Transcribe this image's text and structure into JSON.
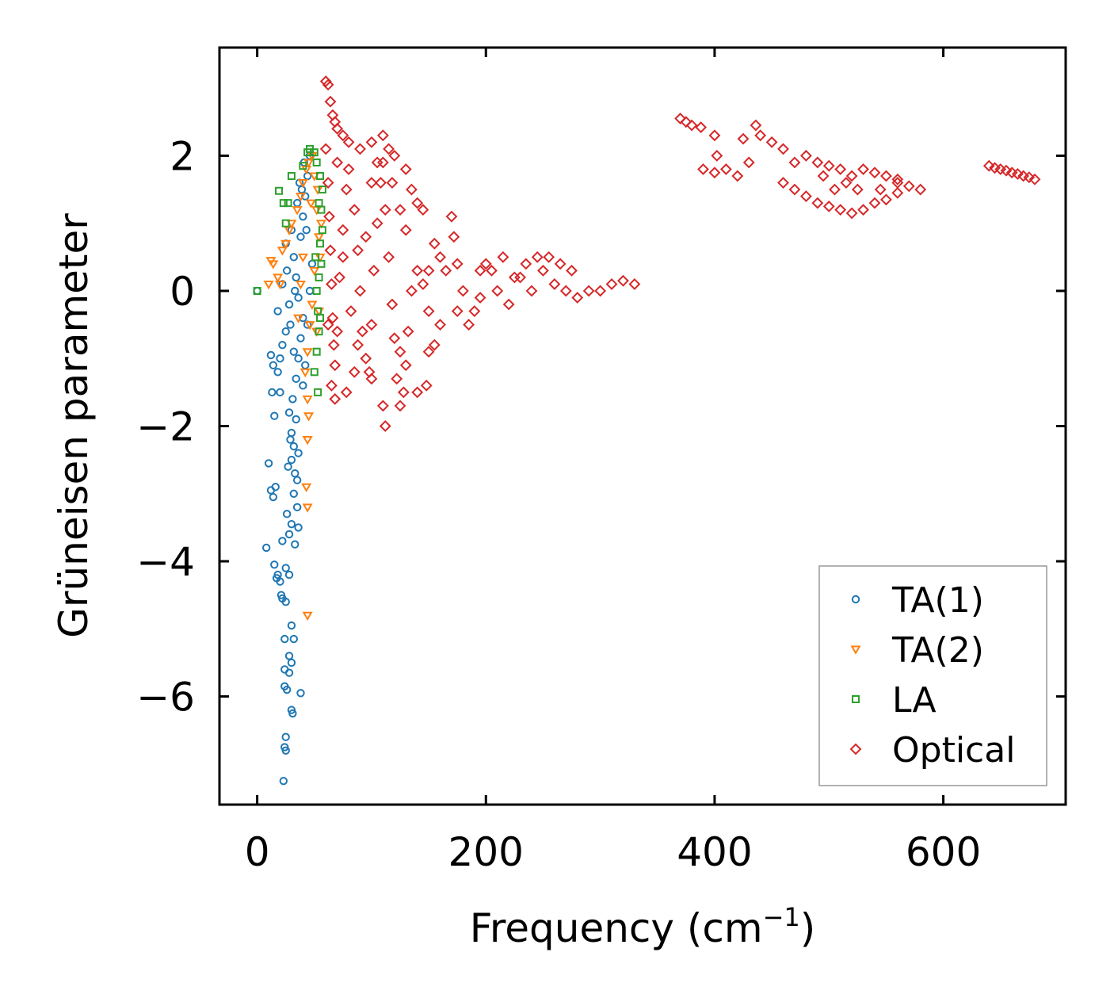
{
  "chart_data": {
    "type": "scatter",
    "title": "",
    "xlabel": "Frequency (cm",
    "xlabel_sup": "−1",
    "xlabel_suffix": ")",
    "ylabel": "Grüneisen parameter",
    "xlim": [
      -33,
      707
    ],
    "ylim": [
      -7.6,
      3.6
    ],
    "x_ticks": [
      0,
      200,
      400,
      600
    ],
    "x_tick_labels": [
      "0",
      "200",
      "400",
      "600"
    ],
    "y_ticks": [
      -6,
      -4,
      -2,
      0,
      2
    ],
    "y_tick_labels": [
      "−6",
      "−4",
      "−2",
      "0",
      "2"
    ],
    "grid": false,
    "legend_position": "lower-right",
    "series": [
      {
        "name": "TA(1)",
        "marker": "circle",
        "color": "#1f77b4",
        "points": [
          [
            0,
            0
          ],
          [
            10,
            -2.55
          ],
          [
            12,
            -2.95
          ],
          [
            14,
            -3.05
          ],
          [
            16,
            -2.9
          ],
          [
            8,
            -3.8
          ],
          [
            15,
            -4.05
          ],
          [
            18,
            -4.2
          ],
          [
            17,
            -4.25
          ],
          [
            20,
            -4.3
          ],
          [
            22,
            -3.7
          ],
          [
            25,
            -4.1
          ],
          [
            28,
            -4.2
          ],
          [
            21,
            -4.5
          ],
          [
            22,
            -4.55
          ],
          [
            25,
            -4.6
          ],
          [
            24,
            -5.15
          ],
          [
            30,
            -4.95
          ],
          [
            32,
            -5.15
          ],
          [
            28,
            -5.4
          ],
          [
            30,
            -5.5
          ],
          [
            24,
            -5.6
          ],
          [
            28,
            -5.65
          ],
          [
            24,
            -5.85
          ],
          [
            26,
            -5.9
          ],
          [
            38,
            -5.95
          ],
          [
            30,
            -6.2
          ],
          [
            31,
            -6.25
          ],
          [
            25,
            -6.6
          ],
          [
            24,
            -6.75
          ],
          [
            25,
            -6.8
          ],
          [
            23,
            -7.25
          ],
          [
            13,
            -1.5
          ],
          [
            15,
            -1.85
          ],
          [
            18,
            -1.2
          ],
          [
            20,
            -1.0
          ],
          [
            12,
            -0.95
          ],
          [
            14,
            -1.1
          ],
          [
            22,
            -0.8
          ],
          [
            25,
            -0.6
          ],
          [
            18,
            -0.3
          ],
          [
            20,
            -1.5
          ],
          [
            28,
            -1.8
          ],
          [
            30,
            -2.1
          ],
          [
            32,
            -2.3
          ],
          [
            30,
            -2.5
          ],
          [
            33,
            -2.7
          ],
          [
            35,
            -2.8
          ],
          [
            32,
            -3.0
          ],
          [
            35,
            -3.2
          ],
          [
            30,
            -3.45
          ],
          [
            28,
            -3.6
          ],
          [
            33,
            -3.75
          ],
          [
            36,
            -3.5
          ],
          [
            26,
            -3.3
          ],
          [
            27,
            -2.6
          ],
          [
            29,
            -2.2
          ],
          [
            31,
            -1.6
          ],
          [
            34,
            -1.3
          ],
          [
            36,
            -1.0
          ],
          [
            38,
            -0.7
          ],
          [
            40,
            -0.4
          ],
          [
            36,
            -0.1
          ],
          [
            34,
            0.2
          ],
          [
            32,
            0.5
          ],
          [
            38,
            0.8
          ],
          [
            40,
            1.1
          ],
          [
            42,
            1.4
          ],
          [
            44,
            1.7
          ],
          [
            46,
            2.0
          ],
          [
            30,
            0.9
          ],
          [
            35,
            1.3
          ],
          [
            37,
            1.6
          ],
          [
            25,
            0.7
          ],
          [
            26,
            0.3
          ],
          [
            22,
            0.1
          ],
          [
            28,
            -0.2
          ],
          [
            32,
            -0.9
          ],
          [
            34,
            -1.9
          ],
          [
            36,
            -2.4
          ],
          [
            40,
            -1.4
          ],
          [
            42,
            -1.1
          ],
          [
            44,
            -0.5
          ],
          [
            46,
            0.0
          ],
          [
            48,
            0.4
          ],
          [
            43,
            0.9
          ],
          [
            41,
            1.9
          ],
          [
            39,
            1.5
          ],
          [
            33,
            0.0
          ],
          [
            29,
            -0.5
          ]
        ]
      },
      {
        "name": "TA(2)",
        "marker": "triangle-down",
        "color": "#ff7f0e",
        "points": [
          [
            10,
            0.1
          ],
          [
            12,
            0.45
          ],
          [
            14,
            0.4
          ],
          [
            18,
            0.2
          ],
          [
            20,
            0.1
          ],
          [
            22,
            0.6
          ],
          [
            25,
            0.7
          ],
          [
            28,
            0.9
          ],
          [
            30,
            1.0
          ],
          [
            35,
            1.2
          ],
          [
            38,
            1.4
          ],
          [
            40,
            1.6
          ],
          [
            43,
            1.8
          ],
          [
            45,
            1.9
          ],
          [
            48,
            2.0
          ],
          [
            50,
            1.7
          ],
          [
            52,
            1.2
          ],
          [
            54,
            0.8
          ],
          [
            50,
            0.3
          ],
          [
            48,
            -0.2
          ],
          [
            46,
            -0.5
          ],
          [
            44,
            -0.9
          ],
          [
            42,
            -1.2
          ],
          [
            44,
            -1.6
          ],
          [
            45,
            -1.85
          ],
          [
            44,
            -2.2
          ],
          [
            43,
            -2.9
          ],
          [
            44,
            -3.2
          ],
          [
            44,
            -4.8
          ],
          [
            36,
            -0.4
          ],
          [
            38,
            0.1
          ],
          [
            40,
            0.5
          ],
          [
            52,
            -0.6
          ],
          [
            54,
            -0.3
          ],
          [
            55,
            0.5
          ],
          [
            56,
            1.0
          ],
          [
            53,
            1.5
          ],
          [
            47,
            1.3
          ]
        ]
      },
      {
        "name": "LA",
        "marker": "square",
        "color": "#2ca02c",
        "points": [
          [
            0,
            0
          ],
          [
            19,
            1.48
          ],
          [
            23,
            1.3
          ],
          [
            27,
            1.3
          ],
          [
            30,
            1.7
          ],
          [
            25,
            1.0
          ],
          [
            40,
            1.85
          ],
          [
            44,
            2.05
          ],
          [
            46,
            2.1
          ],
          [
            50,
            2.05
          ],
          [
            52,
            1.9
          ],
          [
            55,
            1.7
          ],
          [
            56,
            1.2
          ],
          [
            55,
            0.7
          ],
          [
            54,
            0.2
          ],
          [
            53,
            -0.3
          ],
          [
            54,
            -0.6
          ],
          [
            52,
            -0.9
          ],
          [
            50,
            -1.2
          ],
          [
            53,
            -1.5
          ],
          [
            56,
            0.4
          ],
          [
            57,
            0.9
          ],
          [
            57,
            1.5
          ],
          [
            54,
            1.3
          ],
          [
            51,
            0.5
          ],
          [
            52,
            0.0
          ],
          [
            55,
            -0.4
          ]
        ]
      },
      {
        "name": "Optical",
        "marker": "diamond",
        "color": "#d62728",
        "points": [
          [
            60,
            3.1
          ],
          [
            62,
            3.05
          ],
          [
            64,
            2.8
          ],
          [
            66,
            2.6
          ],
          [
            68,
            2.5
          ],
          [
            70,
            2.4
          ],
          [
            75,
            2.3
          ],
          [
            80,
            2.2
          ],
          [
            90,
            2.1
          ],
          [
            100,
            2.2
          ],
          [
            110,
            2.3
          ],
          [
            115,
            2.1
          ],
          [
            120,
            2.0
          ],
          [
            130,
            1.8
          ],
          [
            135,
            1.5
          ],
          [
            140,
            1.3
          ],
          [
            145,
            1.2
          ],
          [
            60,
            2.1
          ],
          [
            62,
            1.6
          ],
          [
            63,
            1.1
          ],
          [
            64,
            0.6
          ],
          [
            65,
            0.1
          ],
          [
            66,
            -0.4
          ],
          [
            67,
            -0.8
          ],
          [
            68,
            -1.1
          ],
          [
            70,
            -0.6
          ],
          [
            72,
            0.2
          ],
          [
            75,
            0.9
          ],
          [
            78,
            1.5
          ],
          [
            80,
            1.8
          ],
          [
            85,
            1.2
          ],
          [
            88,
            0.6
          ],
          [
            90,
            0.0
          ],
          [
            92,
            -0.6
          ],
          [
            95,
            -1.0
          ],
          [
            98,
            -1.2
          ],
          [
            100,
            -0.5
          ],
          [
            102,
            0.3
          ],
          [
            105,
            1.0
          ],
          [
            108,
            1.6
          ],
          [
            110,
            1.9
          ],
          [
            112,
            1.2
          ],
          [
            115,
            0.5
          ],
          [
            118,
            -0.2
          ],
          [
            120,
            -0.7
          ],
          [
            122,
            -1.3
          ],
          [
            125,
            -1.7
          ],
          [
            128,
            -1.5
          ],
          [
            130,
            -1.1
          ],
          [
            132,
            -0.6
          ],
          [
            135,
            0.0
          ],
          [
            140,
            0.3
          ],
          [
            145,
            0.1
          ],
          [
            150,
            -0.3
          ],
          [
            155,
            -0.8
          ],
          [
            160,
            -0.5
          ],
          [
            165,
            0.3
          ],
          [
            170,
            1.1
          ],
          [
            172,
            0.8
          ],
          [
            175,
            0.4
          ],
          [
            180,
            0.0
          ],
          [
            185,
            -0.5
          ],
          [
            190,
            -0.3
          ],
          [
            195,
            -0.1
          ],
          [
            200,
            0.4
          ],
          [
            205,
            0.3
          ],
          [
            210,
            0.0
          ],
          [
            220,
            -0.2
          ],
          [
            230,
            0.2
          ],
          [
            240,
            0.0
          ],
          [
            250,
            0.3
          ],
          [
            260,
            0.1
          ],
          [
            270,
            0.0
          ],
          [
            280,
            -0.1
          ],
          [
            290,
            0.0
          ],
          [
            300,
            0.0
          ],
          [
            310,
            0.1
          ],
          [
            320,
            0.15
          ],
          [
            330,
            0.1
          ],
          [
            62,
            -0.5
          ],
          [
            65,
            -1.4
          ],
          [
            68,
            -1.6
          ],
          [
            78,
            -1.5
          ],
          [
            85,
            -1.2
          ],
          [
            100,
            -1.3
          ],
          [
            110,
            -1.7
          ],
          [
            112,
            -2.0
          ],
          [
            140,
            -1.5
          ],
          [
            148,
            -1.4
          ],
          [
            150,
            -0.9
          ],
          [
            125,
            -0.9
          ],
          [
            95,
            0.8
          ],
          [
            100,
            1.6
          ],
          [
            105,
            1.9
          ],
          [
            118,
            1.6
          ],
          [
            125,
            1.2
          ],
          [
            130,
            0.9
          ],
          [
            150,
            0.3
          ],
          [
            155,
            0.7
          ],
          [
            160,
            0.5
          ],
          [
            175,
            -0.3
          ],
          [
            195,
            0.3
          ],
          [
            215,
            0.5
          ],
          [
            225,
            0.2
          ],
          [
            235,
            0.4
          ],
          [
            245,
            0.5
          ],
          [
            255,
            0.5
          ],
          [
            265,
            0.4
          ],
          [
            275,
            0.3
          ],
          [
            70,
            1.9
          ],
          [
            75,
            0.5
          ],
          [
            82,
            -0.3
          ],
          [
            88,
            -0.8
          ],
          [
            370,
            2.55
          ],
          [
            375,
            2.5
          ],
          [
            380,
            2.45
          ],
          [
            388,
            2.42
          ],
          [
            390,
            1.8
          ],
          [
            400,
            1.75
          ],
          [
            410,
            1.8
          ],
          [
            420,
            1.7
          ],
          [
            425,
            2.25
          ],
          [
            430,
            1.9
          ],
          [
            436,
            2.45
          ],
          [
            440,
            2.3
          ],
          [
            450,
            2.2
          ],
          [
            460,
            2.1
          ],
          [
            470,
            1.9
          ],
          [
            480,
            2.0
          ],
          [
            490,
            1.9
          ],
          [
            500,
            1.85
          ],
          [
            510,
            1.8
          ],
          [
            520,
            1.7
          ],
          [
            530,
            1.8
          ],
          [
            540,
            1.75
          ],
          [
            550,
            1.7
          ],
          [
            560,
            1.6
          ],
          [
            570,
            1.55
          ],
          [
            580,
            1.5
          ],
          [
            460,
            1.6
          ],
          [
            470,
            1.5
          ],
          [
            480,
            1.4
          ],
          [
            490,
            1.3
          ],
          [
            500,
            1.25
          ],
          [
            510,
            1.2
          ],
          [
            520,
            1.15
          ],
          [
            530,
            1.2
          ],
          [
            540,
            1.3
          ],
          [
            550,
            1.35
          ],
          [
            560,
            1.45
          ],
          [
            495,
            1.7
          ],
          [
            505,
            1.5
          ],
          [
            515,
            1.6
          ],
          [
            525,
            1.5
          ],
          [
            545,
            1.5
          ],
          [
            560,
            1.65
          ],
          [
            400,
            2.3
          ],
          [
            402,
            2.0
          ],
          [
            640,
            1.85
          ],
          [
            645,
            1.82
          ],
          [
            650,
            1.8
          ],
          [
            655,
            1.78
          ],
          [
            660,
            1.75
          ],
          [
            665,
            1.73
          ],
          [
            670,
            1.7
          ],
          [
            675,
            1.68
          ],
          [
            680,
            1.65
          ]
        ]
      }
    ]
  }
}
